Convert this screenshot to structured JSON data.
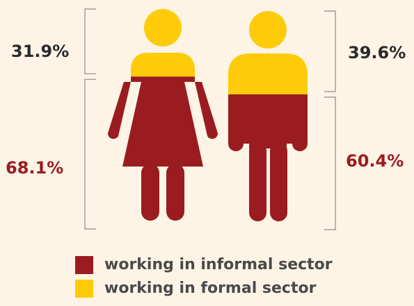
{
  "colors": {
    "informal": "#9a1c20",
    "formal": "#fdcb0a",
    "bracket": "#8a8a8a",
    "formal_text": "#2a2a2a"
  },
  "chart_data": {
    "type": "pictogram",
    "title": "",
    "categories": [
      "women",
      "men"
    ],
    "series": [
      {
        "name": "working in informal sector",
        "values": [
          68.1,
          60.4
        ]
      },
      {
        "name": "working in formal sector",
        "values": [
          31.9,
          39.6
        ]
      }
    ],
    "value_labels": {
      "women": {
        "formal": "31.9%",
        "informal": "68.1%"
      },
      "men": {
        "formal": "39.6%",
        "informal": "60.4%"
      }
    },
    "legend": {
      "position": "bottom",
      "items": [
        {
          "label": "working in informal sector",
          "color": "#9a1c20",
          "icon": "square-swatch"
        },
        {
          "label": "working in formal sector",
          "color": "#fdcb0a",
          "icon": "square-swatch"
        }
      ]
    },
    "icons": [
      "woman-figure-icon",
      "man-figure-icon"
    ]
  }
}
